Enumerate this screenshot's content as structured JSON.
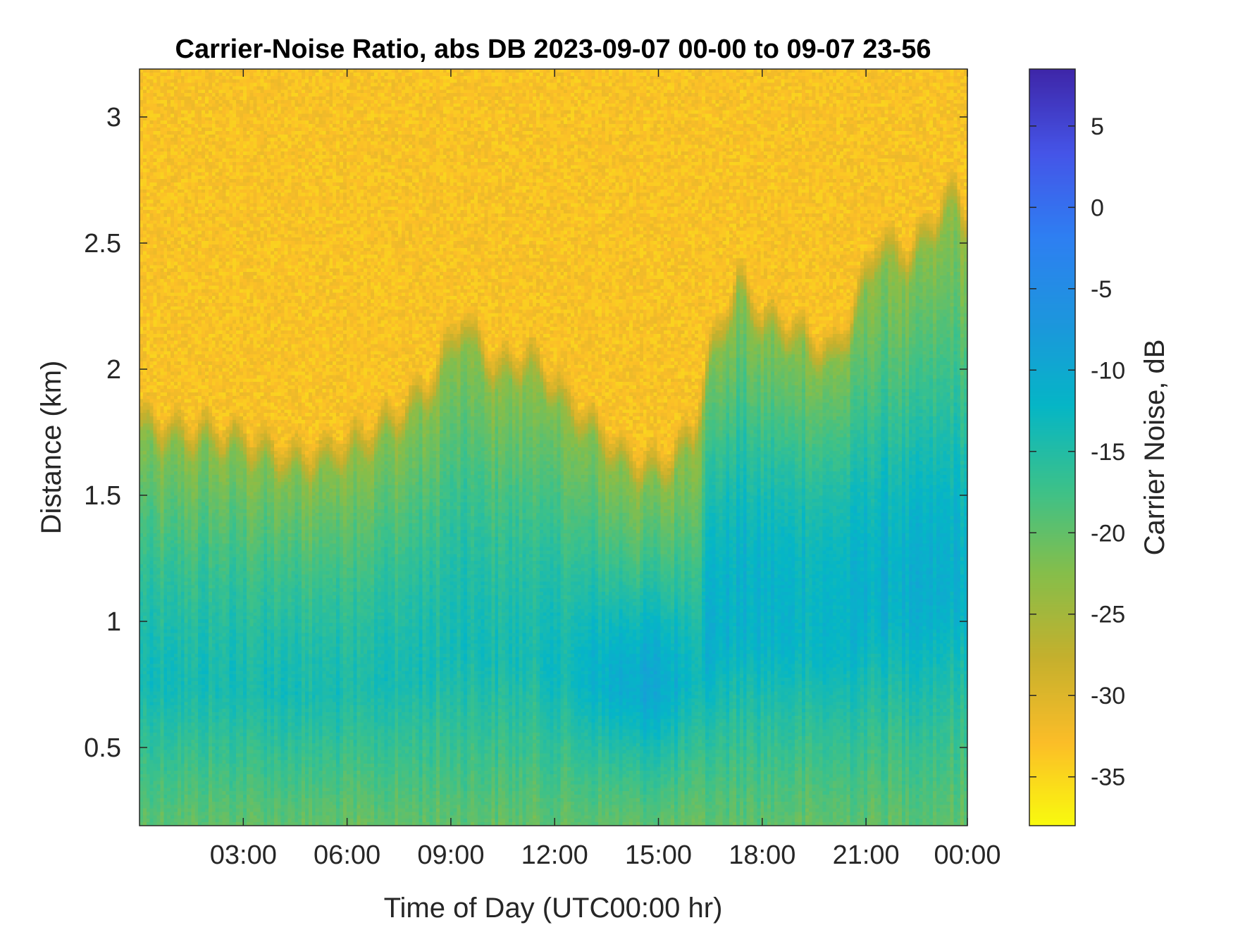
{
  "chart_data": {
    "type": "heatmap",
    "title": "Carrier-Noise Ratio, abs DB 2023-09-07 00-00 to 09-07 23-56",
    "xlabel": "Time of Day (UTC00:00 hr)",
    "ylabel": "Distance (km)",
    "colorbar_label": "Carrier Noise, dB",
    "xlim_hours": [
      0,
      23.93
    ],
    "ylim_km": [
      0.19,
      3.19
    ],
    "clim_db": [
      -38,
      8.5
    ],
    "x_ticks": [
      {
        "hour": 3,
        "label": "03:00"
      },
      {
        "hour": 6,
        "label": "06:00"
      },
      {
        "hour": 9,
        "label": "09:00"
      },
      {
        "hour": 12,
        "label": "12:00"
      },
      {
        "hour": 15,
        "label": "15:00"
      },
      {
        "hour": 18,
        "label": "18:00"
      },
      {
        "hour": 21,
        "label": "21:00"
      },
      {
        "hour": 24,
        "label": "00:00"
      }
    ],
    "y_ticks": [
      {
        "value": 0.5,
        "label": "0.5"
      },
      {
        "value": 1,
        "label": "1"
      },
      {
        "value": 1.5,
        "label": "1.5"
      },
      {
        "value": 2,
        "label": "2"
      },
      {
        "value": 2.5,
        "label": "2.5"
      },
      {
        "value": 3,
        "label": "3"
      }
    ],
    "colorbar_ticks": [
      {
        "value": 5,
        "label": "5"
      },
      {
        "value": 0,
        "label": "0"
      },
      {
        "value": -5,
        "label": "-5"
      },
      {
        "value": -10,
        "label": "-10"
      },
      {
        "value": -15,
        "label": "-15"
      },
      {
        "value": -20,
        "label": "-20"
      },
      {
        "value": -25,
        "label": "-25"
      },
      {
        "value": -30,
        "label": "-30"
      },
      {
        "value": -35,
        "label": "-35"
      }
    ],
    "colormap": "parula (reversed: yellow = low, dark blue = high)",
    "colormap_stops": [
      "#f9fb0e",
      "#fbbd28",
      "#c5b02d",
      "#86be4a",
      "#3cc18a",
      "#05b6c6",
      "#1d96dd",
      "#2e7ff2",
      "#4555e8",
      "#3e26a8"
    ],
    "approx_signal_top_km": [
      [
        0.0,
        1.8
      ],
      [
        1.0,
        1.75
      ],
      [
        2.0,
        1.75
      ],
      [
        3.0,
        1.72
      ],
      [
        4.0,
        1.66
      ],
      [
        4.5,
        1.64
      ],
      [
        5.5,
        1.67
      ],
      [
        6.5,
        1.73
      ],
      [
        7.5,
        1.82
      ],
      [
        8.5,
        1.95
      ],
      [
        9.3,
        2.2
      ],
      [
        10.3,
        2.0
      ],
      [
        11.3,
        2.05
      ],
      [
        12.5,
        1.85
      ],
      [
        13.5,
        1.72
      ],
      [
        14.0,
        1.65
      ],
      [
        15.0,
        1.6
      ],
      [
        16.0,
        1.75
      ],
      [
        16.5,
        2.05
      ],
      [
        17.3,
        2.35
      ],
      [
        18.0,
        2.2
      ],
      [
        19.0,
        2.15
      ],
      [
        20.0,
        2.05
      ],
      [
        20.6,
        2.2
      ],
      [
        21.3,
        2.5
      ],
      [
        22.3,
        2.45
      ],
      [
        23.5,
        2.7
      ],
      [
        23.93,
        2.6
      ]
    ],
    "approx_profile_db": {
      "near_surface_0.3km": -20,
      "boundary_layer_1km": -14,
      "strong_core_0.8km_14-16h": -10,
      "above_signal_top": -33
    },
    "grid": false,
    "legend": "colorbar-right"
  }
}
